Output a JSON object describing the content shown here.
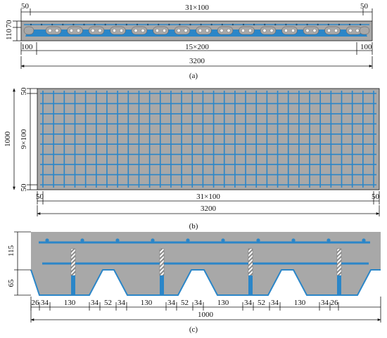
{
  "figure": {
    "panels": [
      {
        "caption": "(a)",
        "dims": {
          "top_left": "50",
          "top_mid": "31×100",
          "top_right": "50",
          "left_top": "70",
          "left_bottom": "110",
          "bottom_left": "100",
          "bottom_mid": "15×200",
          "bottom_right": "100",
          "overall": "3200"
        }
      },
      {
        "caption": "(b)",
        "dims": {
          "left_overall": "1000",
          "left_mid": "9×100",
          "left_top": "50",
          "left_bottom": "50",
          "bottom_left": "50",
          "bottom_mid": "31×100",
          "bottom_right": "50",
          "overall": "3200"
        }
      },
      {
        "caption": "(c)",
        "dims": {
          "left_top": "115",
          "left_bottom": "65",
          "segments": [
            "26",
            "34",
            "130",
            "34",
            "52",
            "34",
            "130",
            "34",
            "52",
            "34",
            "130",
            "34",
            "52",
            "34",
            "130",
            "34",
            "26"
          ],
          "overall": "1000"
        }
      }
    ],
    "colors": {
      "concrete": "#a8a8a8",
      "steel": "#2b86c8",
      "deck": "#2b86c8",
      "line": "#111111"
    }
  }
}
